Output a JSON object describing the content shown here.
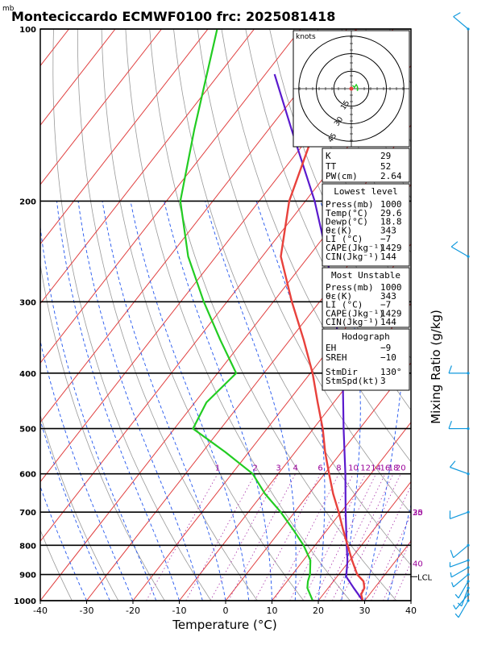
{
  "header": {
    "units_mb": "mb",
    "title": "Monteciccardo ECMWF0100 frc: 2025081418"
  },
  "colors": {
    "temperature": "#e8413c",
    "dewpoint": "#22cc22",
    "parcel": "#5a1acd",
    "isotherm": "#e04040",
    "dry_adiabat": "#999999",
    "moist_adiabat": "#2255ee",
    "mixing_ratio": "#aa33aa",
    "wind": "#1199dd"
  },
  "chart_data": {
    "type": "skew-t",
    "xlabel": "Temperature (°C)",
    "ylabel_right": "Mixing Ratio (g/kg)",
    "x_ticks": [
      "-40",
      "-30",
      "-20",
      "-10",
      "0",
      "10",
      "20",
      "30",
      "40"
    ],
    "xlim": [
      -40,
      40
    ],
    "pressure_ticks": [
      "100",
      "200",
      "300",
      "400",
      "500",
      "600",
      "700",
      "800",
      "900",
      "1000"
    ],
    "ylim_mb": [
      1000,
      100
    ],
    "mixing_ratio_labels": [
      "1",
      "2",
      "3",
      "4",
      "6",
      "8",
      "10",
      "12",
      "14",
      "16",
      "18",
      "20",
      "25",
      "30",
      "35",
      "40"
    ],
    "lcl_label": "LCL",
    "lcl_p": 908,
    "temperature_profile": [
      {
        "p": 1000,
        "t": 29.6
      },
      {
        "p": 975,
        "t": 28.2
      },
      {
        "p": 950,
        "t": 27.8
      },
      {
        "p": 925,
        "t": 26.5
      },
      {
        "p": 900,
        "t": 24.0
      },
      {
        "p": 850,
        "t": 20.5
      },
      {
        "p": 800,
        "t": 17.0
      },
      {
        "p": 750,
        "t": 13.3
      },
      {
        "p": 700,
        "t": 9.5
      },
      {
        "p": 650,
        "t": 5.2
      },
      {
        "p": 600,
        "t": 1.0
      },
      {
        "p": 550,
        "t": -3.5
      },
      {
        "p": 500,
        "t": -8.0
      },
      {
        "p": 450,
        "t": -13.5
      },
      {
        "p": 400,
        "t": -19.5
      },
      {
        "p": 350,
        "t": -27.0
      },
      {
        "p": 300,
        "t": -36.0
      },
      {
        "p": 250,
        "t": -46.0
      },
      {
        "p": 200,
        "t": -53.5
      },
      {
        "p": 150,
        "t": -60.0
      },
      {
        "p": 100,
        "t": -68.0
      }
    ],
    "dewpoint_profile": [
      {
        "p": 1000,
        "t": 18.8
      },
      {
        "p": 950,
        "t": 15.5
      },
      {
        "p": 925,
        "t": 14.5
      },
      {
        "p": 900,
        "t": 13.8
      },
      {
        "p": 850,
        "t": 11.5
      },
      {
        "p": 800,
        "t": 7.5
      },
      {
        "p": 750,
        "t": 2.5
      },
      {
        "p": 700,
        "t": -3.0
      },
      {
        "p": 650,
        "t": -9.5
      },
      {
        "p": 600,
        "t": -15.5
      },
      {
        "p": 550,
        "t": -25.0
      },
      {
        "p": 500,
        "t": -36.0
      },
      {
        "p": 450,
        "t": -37.5
      },
      {
        "p": 400,
        "t": -36.0
      },
      {
        "p": 350,
        "t": -45.0
      },
      {
        "p": 300,
        "t": -55.0
      },
      {
        "p": 250,
        "t": -66.0
      },
      {
        "p": 200,
        "t": -77.0
      },
      {
        "p": 150,
        "t": -86.0
      },
      {
        "p": 100,
        "t": -98.0
      }
    ],
    "parcel_profile": [
      {
        "p": 1000,
        "t": 29.6
      },
      {
        "p": 950,
        "t": 25.5
      },
      {
        "p": 908,
        "t": 22.0
      },
      {
        "p": 850,
        "t": 19.5
      },
      {
        "p": 800,
        "t": 16.8
      },
      {
        "p": 700,
        "t": 11.0
      },
      {
        "p": 600,
        "t": 4.5
      },
      {
        "p": 500,
        "t": -3.5
      },
      {
        "p": 400,
        "t": -13.0
      },
      {
        "p": 300,
        "t": -27.0
      },
      {
        "p": 250,
        "t": -36.0
      },
      {
        "p": 200,
        "t": -48.0
      },
      {
        "p": 150,
        "t": -65.0
      },
      {
        "p": 120,
        "t": -78.0
      }
    ],
    "wind_barbs": [
      {
        "p": 1000,
        "dir": 210,
        "spd": 5
      },
      {
        "p": 975,
        "dir": 220,
        "spd": 5
      },
      {
        "p": 950,
        "dir": 200,
        "spd": 5
      },
      {
        "p": 925,
        "dir": 210,
        "spd": 5
      },
      {
        "p": 900,
        "dir": 230,
        "spd": 5
      },
      {
        "p": 875,
        "dir": 240,
        "spd": 5
      },
      {
        "p": 850,
        "dir": 250,
        "spd": 5
      },
      {
        "p": 800,
        "dir": 230,
        "spd": 10
      },
      {
        "p": 700,
        "dir": 250,
        "spd": 10
      },
      {
        "p": 600,
        "dir": 290,
        "spd": 10
      },
      {
        "p": 500,
        "dir": 270,
        "spd": 10
      },
      {
        "p": 400,
        "dir": 270,
        "spd": 10
      },
      {
        "p": 250,
        "dir": 300,
        "spd": 10
      },
      {
        "p": 100,
        "dir": 310,
        "spd": 10
      }
    ],
    "hodograph": {
      "units": "knots",
      "ring_labels": [
        "15",
        "30",
        "45"
      ]
    }
  },
  "indices": {
    "k_label": "K",
    "k_value": "29",
    "tt_label": "TT",
    "tt_value": "52",
    "pw_label": "PW(cm)",
    "pw_value": "2.64"
  },
  "lowest_level": {
    "title": "Lowest level",
    "rows": [
      {
        "label": "Press(mb)",
        "value": "1000"
      },
      {
        "label": "Temp(°C)",
        "value": "29.6"
      },
      {
        "label": "Dewp(°C)",
        "value": "18.8"
      },
      {
        "label": "θε(K)",
        "value": "343"
      },
      {
        "label": "LI (°C)",
        "value": "−7"
      },
      {
        "label": "CAPE(Jkg⁻¹)",
        "value": "1429"
      },
      {
        "label": "CIN(Jkg⁻¹)",
        "value": "144"
      }
    ]
  },
  "most_unstable": {
    "title": "Most Unstable",
    "rows": [
      {
        "label": "Press(mb)",
        "value": "1000"
      },
      {
        "label": "θε(K)",
        "value": "343"
      },
      {
        "label": "LI (°C)",
        "value": "−7"
      },
      {
        "label": "CAPE(Jkg⁻¹)",
        "value": "1429"
      },
      {
        "label": "CIN(Jkg⁻¹)",
        "value": "144"
      }
    ]
  },
  "hodograph_box": {
    "title": "Hodograph",
    "rows": [
      {
        "label": "EH",
        "value": "−9"
      },
      {
        "label": "SREH",
        "value": "−10"
      },
      {
        "label": "StmDir",
        "value": "130°"
      },
      {
        "label": "StmSpd(kt)",
        "value": "3"
      }
    ]
  }
}
